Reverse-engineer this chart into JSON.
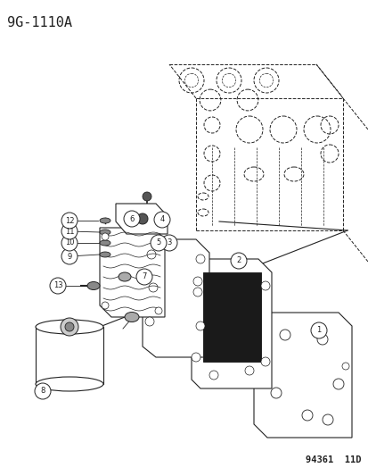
{
  "title": "9G-1110A",
  "footer": "94361  11D",
  "bg_color": "#ffffff",
  "title_font_size": 11,
  "footer_font_size": 7.5,
  "fig_width": 4.14,
  "fig_height": 5.33,
  "dpi": 100,
  "line_color": "#222222",
  "dashed_lw": 0.7,
  "solid_lw": 0.8
}
